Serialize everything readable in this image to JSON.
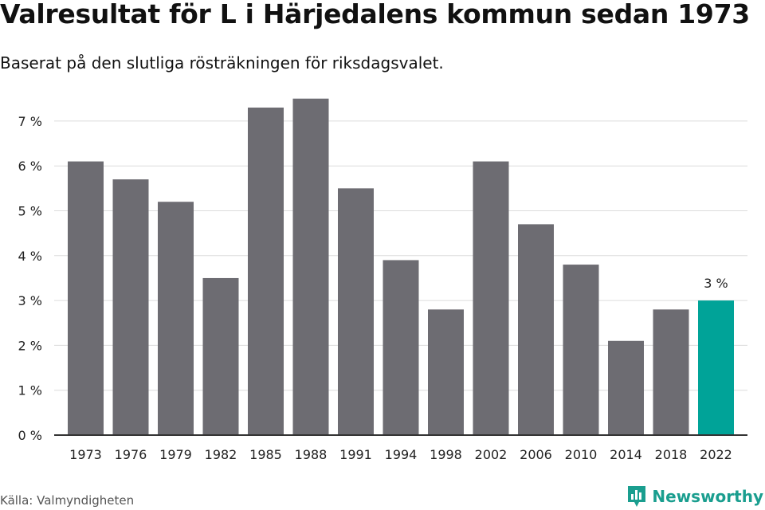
{
  "header": {
    "title": "Valresultat för L i Härjedalens kommun sedan 1973",
    "subtitle": "Baserat på den slutliga rösträkningen för riksdagsvalet."
  },
  "footer": {
    "source": "Källa: Valmyndigheten",
    "brand": "Newsworthy"
  },
  "colors": {
    "bar": "#6d6c72",
    "highlight": "#00a398",
    "grid": "#dcdcdc",
    "axis": "#333333",
    "brand": "#1a9e8f"
  },
  "chart_data": {
    "type": "bar",
    "categories": [
      "1973",
      "1976",
      "1979",
      "1982",
      "1985",
      "1988",
      "1991",
      "1994",
      "1998",
      "2002",
      "2006",
      "2010",
      "2014",
      "2018",
      "2022"
    ],
    "values": [
      6.1,
      5.7,
      5.2,
      3.5,
      7.3,
      7.5,
      5.5,
      3.9,
      2.8,
      6.1,
      4.7,
      3.8,
      2.1,
      2.8,
      3.0
    ],
    "ylim": [
      0,
      7
    ],
    "yticks": [
      0,
      1,
      2,
      3,
      4,
      5,
      6,
      7
    ],
    "ytick_labels": [
      "0 %",
      "1 %",
      "2 %",
      "3 %",
      "4 %",
      "5 %",
      "6 %",
      "7 %"
    ],
    "highlight_index": 14,
    "data_labels": [
      {
        "index": 14,
        "text": "3 %"
      }
    ],
    "grid": true,
    "xlabel": "",
    "ylabel": ""
  }
}
